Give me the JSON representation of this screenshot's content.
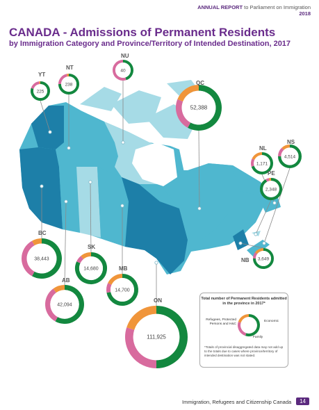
{
  "header": {
    "report_bold": "ANNUAL REPORT",
    "report_rest": "to Parliament on Immigration",
    "year": "2018"
  },
  "title": "CANADA - Admissions of Permanent Residents",
  "subtitle": "by Immigration Category and Province/Territory of Intended Destination, 2017",
  "colors": {
    "economic": "#13883f",
    "family": "#d86b9e",
    "refugees": "#f0953a",
    "map_light": "#a6dbe6",
    "map_mid": "#4fb7cf",
    "map_dark": "#1d7fa8",
    "accent": "#5b2a7e"
  },
  "provinces": [
    {
      "code": "YT",
      "total": "225",
      "economic": 0.8,
      "family": 0.18,
      "refugees": 0.02
    },
    {
      "code": "NT",
      "total": "238",
      "economic": 0.75,
      "family": 0.22,
      "refugees": 0.03
    },
    {
      "code": "NU",
      "total": "40",
      "economic": 0.45,
      "family": 0.55,
      "refugees": 0.0
    },
    {
      "code": "QC",
      "total": "52,388",
      "economic": 0.58,
      "family": 0.23,
      "refugees": 0.19
    },
    {
      "code": "NL",
      "total": "1,171",
      "economic": 0.7,
      "family": 0.12,
      "refugees": 0.18
    },
    {
      "code": "NS",
      "total": "4,514",
      "economic": 0.75,
      "family": 0.13,
      "refugees": 0.12
    },
    {
      "code": "PE",
      "total": "2,348",
      "economic": 0.92,
      "family": 0.05,
      "refugees": 0.03
    },
    {
      "code": "NB",
      "total": "3,649",
      "economic": 0.75,
      "family": 0.1,
      "refugees": 0.15
    },
    {
      "code": "BC",
      "total": "38,443",
      "economic": 0.58,
      "family": 0.34,
      "refugees": 0.08
    },
    {
      "code": "SK",
      "total": "14,680",
      "economic": 0.82,
      "family": 0.07,
      "refugees": 0.11
    },
    {
      "code": "AB",
      "total": "42,094",
      "economic": 0.58,
      "family": 0.32,
      "refugees": 0.1
    },
    {
      "code": "MB",
      "total": "14,700",
      "economic": 0.72,
      "family": 0.1,
      "refugees": 0.18
    },
    {
      "code": "ON",
      "total": "111,925",
      "economic": 0.5,
      "family": 0.3,
      "refugees": 0.2
    }
  ],
  "legend": {
    "title": "Total number of Permanent Residents admitted in the province in 2017*",
    "refugees": "Refugees, Protected Persons and H&C",
    "economic": "Economic",
    "family": "Family",
    "note": "*Totals of provincial disaggregated data may not add up to the totals due to cases where province/territory of intended destination was not stated."
  },
  "footer": {
    "text": "Immigration, Refugees and Citizenship Canada",
    "page": "14"
  }
}
